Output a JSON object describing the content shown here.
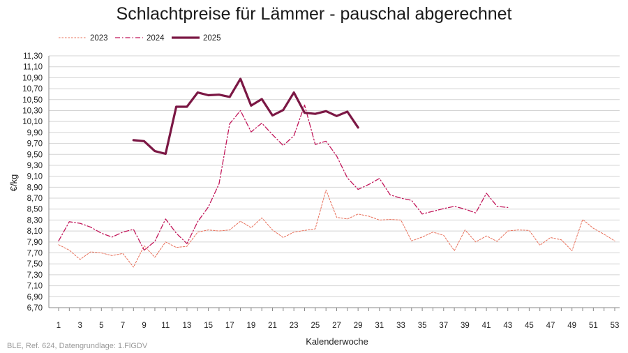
{
  "chart_data": {
    "type": "line",
    "title": "Schlachtpreise für Lämmer - pauschal abgerechnet",
    "xlabel": "Kalenderwoche",
    "ylabel": "€/kg",
    "xlim": [
      1,
      53
    ],
    "ylim": [
      6.7,
      11.3
    ],
    "y_ticks": [
      "6,70",
      "6,90",
      "7,10",
      "7,30",
      "7,50",
      "7,70",
      "7,90",
      "8,10",
      "8,30",
      "8,50",
      "8,70",
      "8,90",
      "9,10",
      "9,30",
      "9,50",
      "9,70",
      "9,90",
      "10,10",
      "10,30",
      "10,50",
      "10,70",
      "10,90",
      "11,10",
      "11,30"
    ],
    "x_ticks": [
      "1",
      "3",
      "5",
      "7",
      "9",
      "11",
      "13",
      "15",
      "17",
      "19",
      "21",
      "23",
      "25",
      "27",
      "29",
      "31",
      "33",
      "35",
      "37",
      "39",
      "41",
      "43",
      "45",
      "47",
      "49",
      "51",
      "53"
    ],
    "grid": "horizontal",
    "legend_position": "top-left",
    "series": [
      {
        "name": "2023",
        "style": "dotted",
        "color": "#e8705a",
        "x": [
          1,
          2,
          3,
          4,
          5,
          6,
          7,
          8,
          9,
          10,
          11,
          12,
          13,
          14,
          15,
          16,
          17,
          18,
          19,
          20,
          21,
          22,
          23,
          24,
          25,
          26,
          27,
          28,
          29,
          30,
          31,
          32,
          33,
          34,
          35,
          36,
          37,
          38,
          39,
          40,
          41,
          42,
          43,
          44,
          45,
          46,
          47,
          48,
          49,
          50,
          51,
          52,
          53
        ],
        "values": [
          7.85,
          7.75,
          7.58,
          7.72,
          7.7,
          7.65,
          7.69,
          7.44,
          7.83,
          7.62,
          7.9,
          7.8,
          7.82,
          8.08,
          8.12,
          8.1,
          8.12,
          8.28,
          8.16,
          8.34,
          8.12,
          7.98,
          8.08,
          8.11,
          8.14,
          8.85,
          8.35,
          8.32,
          8.41,
          8.37,
          8.3,
          8.31,
          8.3,
          7.92,
          7.99,
          8.08,
          8.02,
          7.74,
          8.12,
          7.9,
          8.01,
          7.91,
          8.1,
          8.12,
          8.11,
          7.84,
          7.98,
          7.94,
          7.74,
          8.31,
          8.15,
          8.04,
          7.92
        ]
      },
      {
        "name": "2024",
        "style": "dash-dot",
        "color": "#c2185b",
        "x": [
          1,
          2,
          3,
          4,
          5,
          6,
          7,
          8,
          9,
          10,
          11,
          12,
          13,
          14,
          15,
          16,
          17,
          18,
          19,
          20,
          21,
          22,
          23,
          24,
          25,
          26,
          27,
          28,
          29,
          30,
          31,
          32,
          33,
          34,
          35,
          36,
          37,
          38,
          39,
          40,
          41,
          42,
          43
        ],
        "values": [
          7.92,
          8.27,
          8.24,
          8.17,
          8.06,
          7.99,
          8.08,
          8.13,
          7.75,
          7.91,
          8.32,
          8.06,
          7.87,
          8.27,
          8.54,
          8.96,
          10.06,
          10.3,
          9.91,
          10.07,
          9.86,
          9.66,
          9.84,
          10.4,
          9.68,
          9.74,
          9.47,
          9.07,
          8.86,
          8.95,
          9.06,
          8.76,
          8.7,
          8.66,
          8.41,
          8.46,
          8.51,
          8.55,
          8.5,
          8.43,
          8.79,
          8.55,
          8.53
        ]
      },
      {
        "name": "2025",
        "style": "solid",
        "color": "#7b1744",
        "x": [
          8,
          9,
          10,
          11,
          12,
          13,
          14,
          15,
          16,
          17,
          18,
          19,
          20,
          21,
          22,
          23,
          24,
          25,
          26,
          27,
          28,
          29
        ],
        "values": [
          9.76,
          9.74,
          9.56,
          9.51,
          10.37,
          10.37,
          10.63,
          10.58,
          10.59,
          10.55,
          10.88,
          10.39,
          10.51,
          10.21,
          10.31,
          10.63,
          10.26,
          10.24,
          10.29,
          10.2,
          10.28,
          9.99
        ]
      }
    ]
  },
  "source_note": "BLE, Ref. 624, Datengrundlage: 1.FlGDV"
}
